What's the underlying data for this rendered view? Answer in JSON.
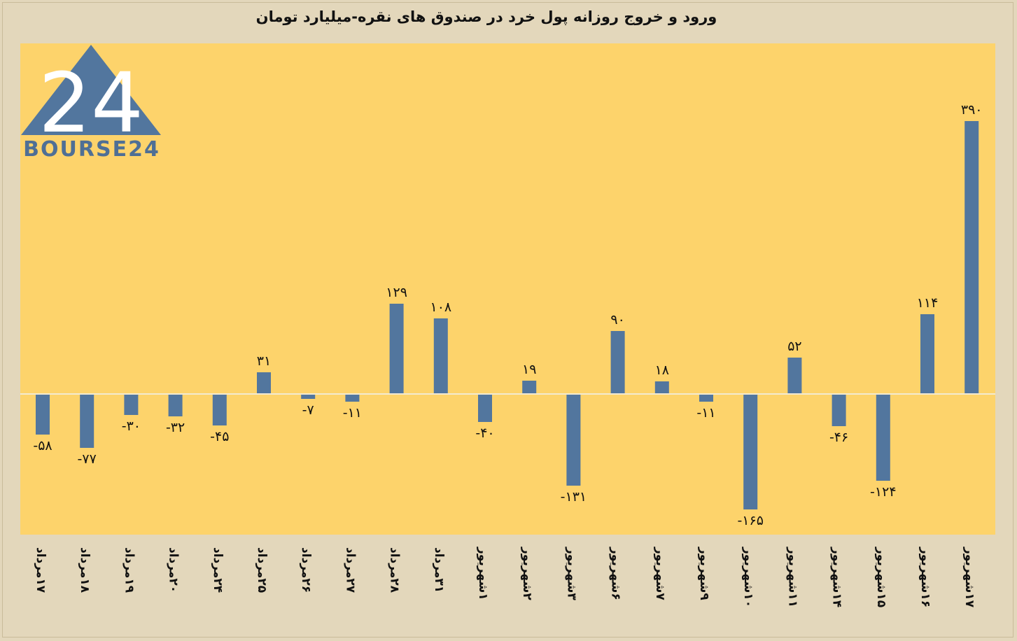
{
  "chart_data": {
    "type": "bar",
    "title": "ورود و خروج روزانه پول خرد در صندوق های نقره-میلیارد تومان",
    "categories": [
      "۱۷مرداد",
      "۱۸مرداد",
      "۱۹مرداد",
      "۲۰مرداد",
      "۲۴مرداد",
      "۲۵مرداد",
      "۲۶مرداد",
      "۲۷مرداد",
      "۲۸مرداد",
      "۳۱مرداد",
      "۱شهریور",
      "۲شهریور",
      "۳شهریور",
      "۶شهریور",
      "۷شهریور",
      "۹شهریور",
      "۱۰شهریور",
      "۱۱شهریور",
      "۱۴شهریور",
      "۱۵شهریور",
      "۱۶شهریور",
      "۱۷شهریور"
    ],
    "values": [
      -58,
      -77,
      -30,
      -32,
      -45,
      31,
      -7,
      -11,
      129,
      108,
      -40,
      19,
      -131,
      90,
      18,
      -11,
      -165,
      52,
      -46,
      -124,
      114,
      390
    ],
    "value_labels": [
      "-۵۸",
      "-۷۷",
      "-۳۰",
      "-۳۲",
      "-۴۵",
      "۳۱",
      "-۷",
      "-۱۱",
      "۱۲۹",
      "۱۰۸",
      "-۴۰",
      "۱۹",
      "-۱۳۱",
      "۹۰",
      "۱۸",
      "-۱۱",
      "-۱۶۵",
      "۵۲",
      "-۴۶",
      "-۱۲۴",
      "۱۱۴",
      "۳۹۰"
    ],
    "ylim": [
      -200,
      400
    ],
    "grid": false,
    "colors": {
      "bar": "#52769e",
      "plot_bg": "#fdd36b",
      "page_bg": "#e3d7bb",
      "zero_line": "#f3ead0"
    }
  },
  "logo": {
    "text": "BOURSE24",
    "mark": "24"
  }
}
